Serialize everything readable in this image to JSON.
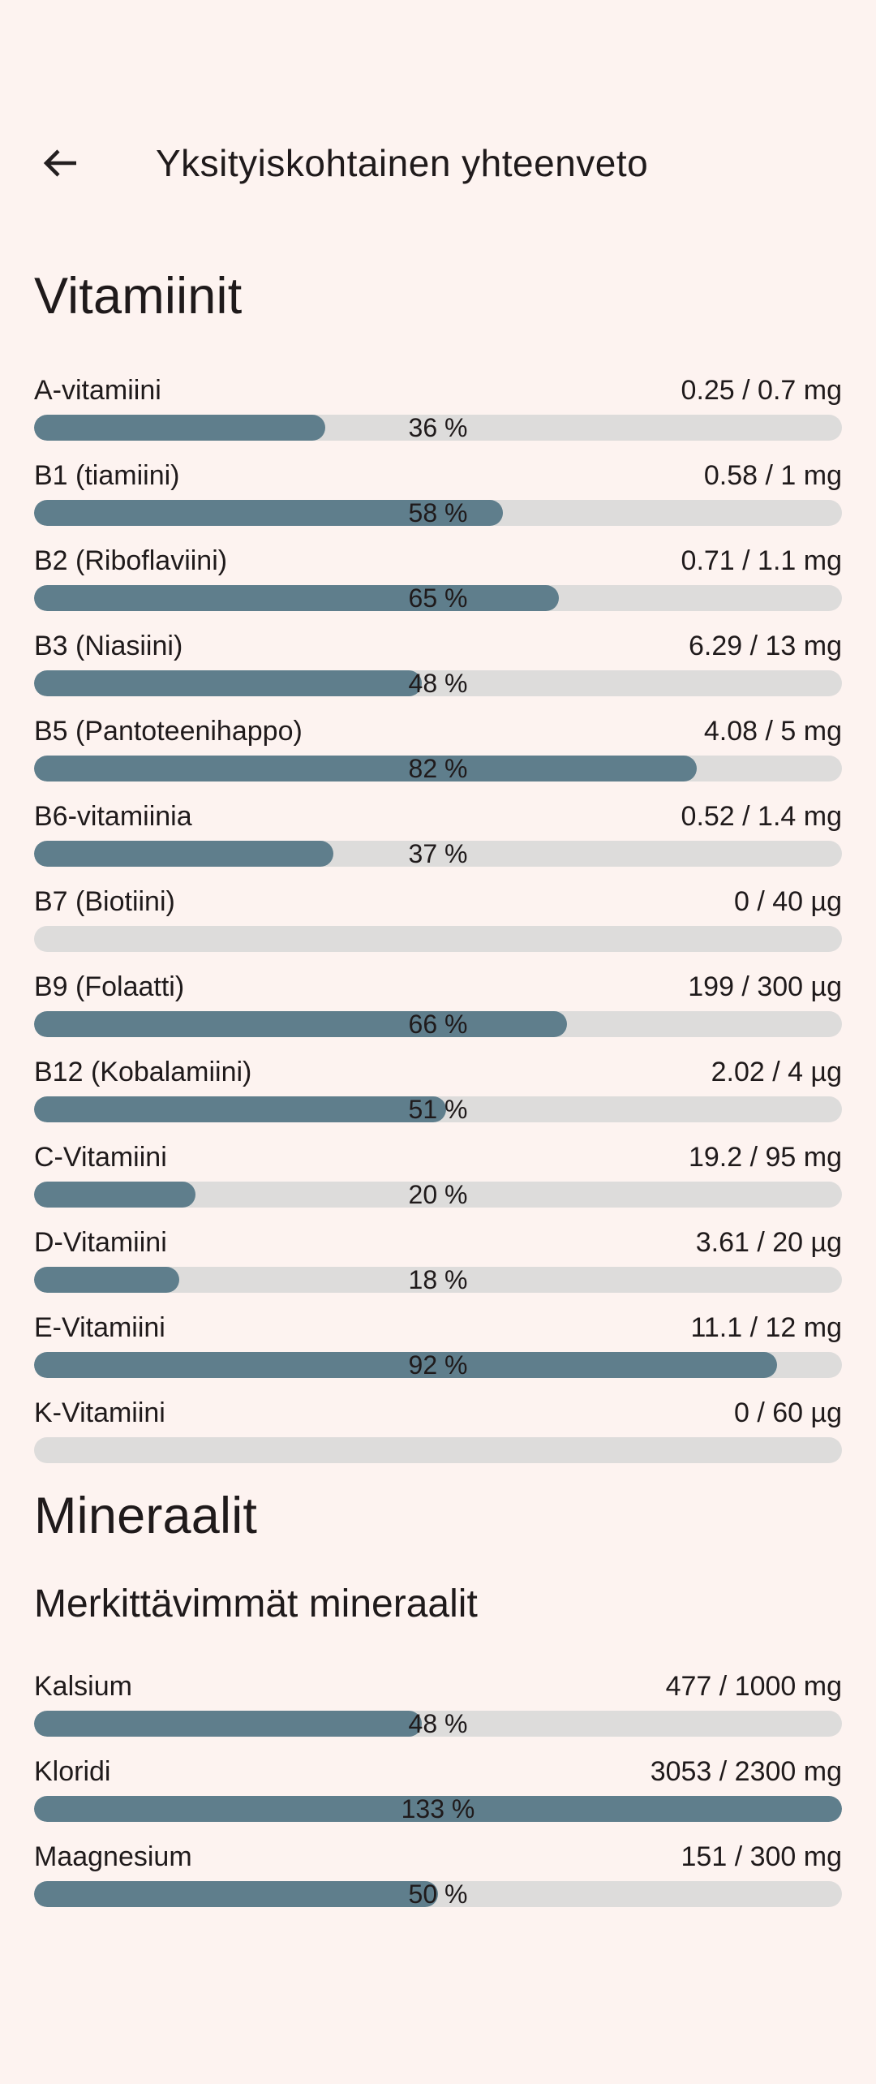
{
  "header": {
    "title": "Yksityiskohtainen yhteenveto"
  },
  "colors": {
    "background": "#FDF3F0",
    "bar_fill": "#5F7E8C",
    "bar_track": "#DDDCDB",
    "text": "#1F1A1B"
  },
  "sections": [
    {
      "title": "Vitamiinit",
      "items": [
        {
          "label": "A-vitamiini",
          "value": "0.25 / 0.7 mg",
          "percent": 36,
          "percent_label": "36 %"
        },
        {
          "label": "B1 (tiamiini)",
          "value": "0.58 / 1 mg",
          "percent": 58,
          "percent_label": "58 %"
        },
        {
          "label": "B2 (Riboflaviini)",
          "value": "0.71 / 1.1 mg",
          "percent": 65,
          "percent_label": "65 %"
        },
        {
          "label": "B3 (Niasiini)",
          "value": "6.29 / 13 mg",
          "percent": 48,
          "percent_label": "48 %"
        },
        {
          "label": "B5 (Pantoteenihappo)",
          "value": "4.08 / 5 mg",
          "percent": 82,
          "percent_label": "82 %"
        },
        {
          "label": "B6-vitamiinia",
          "value": "0.52 / 1.4 mg",
          "percent": 37,
          "percent_label": "37 %"
        },
        {
          "label": "B7 (Biotiini)",
          "value": "0 / 40 µg",
          "percent": 0,
          "percent_label": ""
        },
        {
          "label": "B9 (Folaatti)",
          "value": "199 / 300 µg",
          "percent": 66,
          "percent_label": "66 %"
        },
        {
          "label": "B12 (Kobalamiini)",
          "value": "2.02 / 4 µg",
          "percent": 51,
          "percent_label": "51 %"
        },
        {
          "label": "C-Vitamiini",
          "value": "19.2 / 95 mg",
          "percent": 20,
          "percent_label": "20 %"
        },
        {
          "label": "D-Vitamiini",
          "value": "3.61 / 20 µg",
          "percent": 18,
          "percent_label": "18 %"
        },
        {
          "label": "E-Vitamiini",
          "value": "11.1 / 12 mg",
          "percent": 92,
          "percent_label": "92 %"
        },
        {
          "label": "K-Vitamiini",
          "value": "0 / 60 µg",
          "percent": 0,
          "percent_label": ""
        }
      ]
    },
    {
      "title": "Mineraalit",
      "subtitle": "Merkittävimmät mineraalit",
      "items": [
        {
          "label": "Kalsium",
          "value": "477 / 1000 mg",
          "percent": 48,
          "percent_label": "48 %"
        },
        {
          "label": "Kloridi",
          "value": "3053 / 2300 mg",
          "percent": 133,
          "percent_label": "133 %"
        },
        {
          "label": "Maagnesium",
          "value": "151 / 300 mg",
          "percent": 50,
          "percent_label": "50 %"
        }
      ]
    }
  ]
}
